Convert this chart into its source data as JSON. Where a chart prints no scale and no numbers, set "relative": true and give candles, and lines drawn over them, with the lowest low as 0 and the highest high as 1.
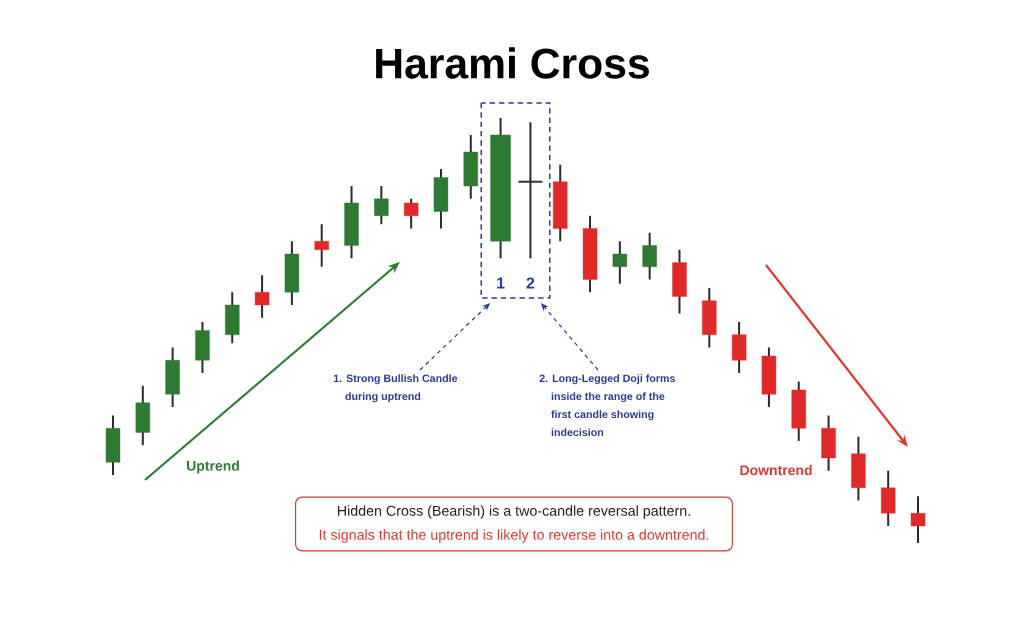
{
  "chart_data": {
    "type": "candlestick",
    "title": "Harami Cross",
    "relative": true,
    "categories": [
      null,
      null,
      null,
      null,
      null,
      null,
      null,
      null,
      null,
      null,
      null,
      null,
      null,
      "1",
      "2",
      null,
      null,
      null,
      null,
      null,
      null,
      null,
      null,
      null,
      null,
      null,
      null,
      null
    ],
    "ohlc": [
      [
        0.19,
        0.3,
        0.16,
        0.27
      ],
      [
        0.26,
        0.37,
        0.23,
        0.33
      ],
      [
        0.35,
        0.46,
        0.32,
        0.43
      ],
      [
        0.43,
        0.52,
        0.4,
        0.5
      ],
      [
        0.49,
        0.59,
        0.47,
        0.56
      ],
      [
        0.59,
        0.63,
        0.53,
        0.56
      ],
      [
        0.59,
        0.71,
        0.56,
        0.68
      ],
      [
        0.71,
        0.75,
        0.65,
        0.69
      ],
      [
        0.7,
        0.84,
        0.67,
        0.8
      ],
      [
        0.77,
        0.84,
        0.75,
        0.81
      ],
      [
        0.8,
        0.81,
        0.74,
        0.77
      ],
      [
        0.78,
        0.88,
        0.74,
        0.86
      ],
      [
        0.84,
        0.96,
        0.81,
        0.92
      ],
      [
        0.71,
        1.0,
        0.67,
        0.96
      ],
      [
        0.85,
        0.99,
        0.67,
        0.85
      ],
      [
        0.85,
        0.89,
        0.71,
        0.74
      ],
      [
        0.74,
        0.77,
        0.59,
        0.62
      ],
      [
        0.65,
        0.71,
        0.61,
        0.68
      ],
      [
        0.65,
        0.73,
        0.62,
        0.7
      ],
      [
        0.66,
        0.69,
        0.54,
        0.58
      ],
      [
        0.57,
        0.6,
        0.46,
        0.49
      ],
      [
        0.49,
        0.52,
        0.4,
        0.43
      ],
      [
        0.44,
        0.46,
        0.32,
        0.35
      ],
      [
        0.36,
        0.38,
        0.24,
        0.27
      ],
      [
        0.27,
        0.3,
        0.17,
        0.2
      ],
      [
        0.21,
        0.25,
        0.1,
        0.13
      ],
      [
        0.13,
        0.17,
        0.04,
        0.07
      ],
      [
        0.07,
        0.11,
        0.0,
        0.04
      ]
    ],
    "colors": [
      "#2e7a32",
      "#2e7a32",
      "#2e7a32",
      "#2e7a32",
      "#2e7a32",
      "#e02a2a",
      "#2e7a32",
      "#e02a2a",
      "#2e7a32",
      "#2e7a32",
      "#e02a2a",
      "#2e7a32",
      "#2e7a32",
      "#2e7a32",
      "#333333",
      "#e02a2a",
      "#e02a2a",
      "#2e7a32",
      "#2e7a32",
      "#e02a2a",
      "#e02a2a",
      "#e02a2a",
      "#e02a2a",
      "#e02a2a",
      "#e02a2a",
      "#e02a2a",
      "#e02a2a",
      "#e02a2a"
    ],
    "annotations": [
      "Uptrend",
      "Downtrend",
      "1. Strong Bullish Candle during uptrend",
      "2. Long-Legged Doji forms inside the range of the first candle showing indecision",
      "Hidden Cross (Bearish) is a two-candle reversal pattern.",
      "It signals that the uptrend is likely to reverse into a downtrend."
    ]
  }
}
